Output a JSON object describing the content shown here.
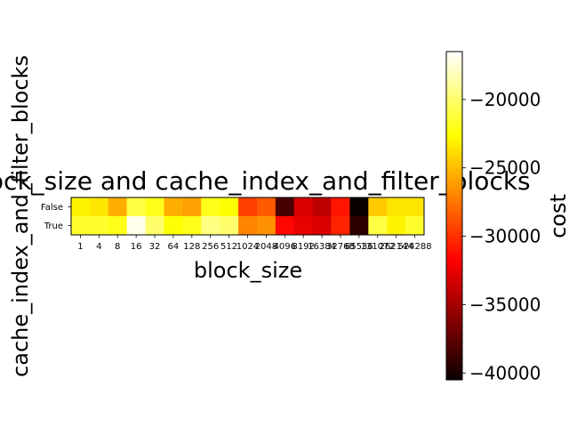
{
  "chart_data": {
    "type": "heatmap",
    "title": "block_size and cache_index_and_filter_blocks",
    "xlabel": "block_size",
    "ylabel": "cache_index_and_filter_blocks",
    "x_categories": [
      "1",
      "4",
      "8",
      "16",
      "32",
      "64",
      "128",
      "256",
      "512",
      "1024",
      "2048",
      "4096",
      "8192",
      "16384",
      "32768",
      "65536",
      "131072",
      "262144",
      "524288"
    ],
    "y_categories": [
      "False",
      "True"
    ],
    "values": [
      [
        -23000,
        -23500,
        -25500,
        -21000,
        -22000,
        -25500,
        -26000,
        -22000,
        -22500,
        -29500,
        -28500,
        -38000,
        -33000,
        -34000,
        -31000,
        -41000,
        -24500,
        -23500,
        -23500
      ],
      [
        -21500,
        -21500,
        -22000,
        -17000,
        -20000,
        -22500,
        -22000,
        -19500,
        -20000,
        -27000,
        -26500,
        -31500,
        -32500,
        -33000,
        -30500,
        -39000,
        -21000,
        -23000,
        -21500
      ]
    ],
    "colorbar": {
      "label": "cost",
      "min": -40500,
      "max": -16500,
      "ticks": [
        -20000,
        -25000,
        -30000,
        -35000,
        -40000
      ],
      "tick_labels": [
        "−20000",
        "−25000",
        "−30000",
        "−35000",
        "−40000"
      ],
      "colormap": "hot"
    }
  }
}
